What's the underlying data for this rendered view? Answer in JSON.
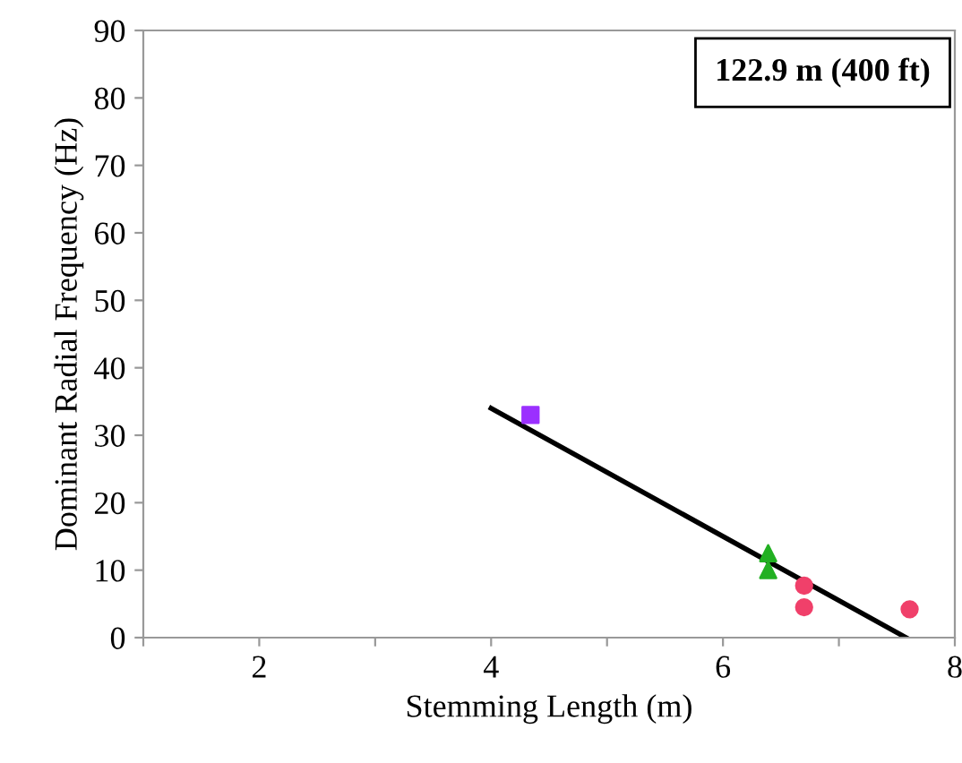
{
  "chart_data": {
    "type": "scatter",
    "xlabel": "Stemming Length (m)",
    "ylabel": "Dominant Radial Frequency (Hz)",
    "annotations": [
      "122.9 m (400 ft)"
    ],
    "xlim": [
      1,
      8
    ],
    "ylim": [
      0,
      90
    ],
    "xticks": [
      {
        "value": 1,
        "label": null
      },
      2,
      {
        "value": 3,
        "label": null
      },
      4,
      {
        "value": 5,
        "label": null
      },
      6,
      {
        "value": 7,
        "label": null
      },
      8
    ],
    "yticks": [
      0,
      10,
      20,
      30,
      40,
      50,
      60,
      70,
      80,
      90
    ],
    "grid": false,
    "series": [
      {
        "marker": "square",
        "color": "#9b30ff",
        "x": [
          4.34
        ],
        "values": [
          33
        ]
      },
      {
        "marker": "triangle",
        "color": "#22b022",
        "x": [
          6.39,
          6.39
        ],
        "values": [
          12.5,
          10
        ]
      },
      {
        "marker": "circle",
        "color": "#f0406a",
        "x": [
          6.7,
          6.7,
          7.61
        ],
        "values": [
          7.7,
          4.5,
          4.2
        ]
      },
      {
        "type": "line",
        "marker": "none",
        "color": "#000000",
        "x": [
          4.0,
          7.58
        ],
        "values": [
          34,
          0
        ]
      }
    ]
  }
}
